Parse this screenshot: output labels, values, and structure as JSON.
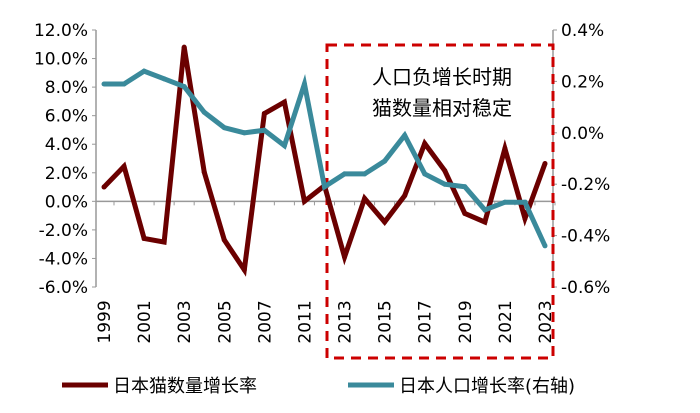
{
  "chart_data": {
    "type": "line",
    "categories": [
      "1999",
      "2000",
      "2001",
      "2002",
      "2003",
      "2004",
      "2005",
      "2006",
      "2007",
      "2009",
      "2011",
      "2012",
      "2013",
      "2014",
      "2015",
      "2016",
      "2017",
      "2018",
      "2019",
      "2020",
      "2021",
      "2022",
      "2023"
    ],
    "x_tick_labels": [
      "1999",
      "2001",
      "2003",
      "2005",
      "2007",
      "2011",
      "2013",
      "2015",
      "2017",
      "2019",
      "2021",
      "2023"
    ],
    "y_left": {
      "min": -6,
      "max": 12,
      "step": 2,
      "tick_labels": [
        "12.0%",
        "10.0%",
        "8.0%",
        "6.0%",
        "4.0%",
        "2.0%",
        "0.0%",
        "-2.0%",
        "-4.0%",
        "-6.0%"
      ]
    },
    "y_right": {
      "min": -0.6,
      "max": 0.4,
      "step": 0.2,
      "tick_labels": [
        "0.4%",
        "0.2%",
        "0.0%",
        "-0.2%",
        "-0.4%",
        "-0.6%"
      ]
    },
    "series": [
      {
        "name": "日本猫数量增长率",
        "axis": "left",
        "color": "#6b0000",
        "values": [
          1.0,
          2.45,
          -2.6,
          -2.85,
          10.8,
          2.05,
          -2.7,
          -4.8,
          6.15,
          6.95,
          0.0,
          1.1,
          -3.9,
          0.2,
          -1.45,
          0.4,
          4.05,
          2.15,
          -0.85,
          -1.45,
          3.7,
          -1.2,
          2.65
        ]
      },
      {
        "name": "日本人口增长率(右轴)",
        "axis": "right",
        "color": "#3a8a9b",
        "values": [
          0.19,
          0.19,
          0.24,
          0.21,
          0.18,
          0.08,
          0.02,
          0.0,
          0.01,
          -0.05,
          0.19,
          -0.21,
          -0.16,
          -0.16,
          -0.11,
          -0.01,
          -0.16,
          -0.2,
          -0.21,
          -0.3,
          -0.27,
          -0.27,
          -0.44
        ]
      }
    ],
    "annotation": {
      "lines": [
        "人口负增长时期",
        "猫数量相对稳定"
      ],
      "box_color": "#cc0000",
      "range": [
        "2013",
        "2023"
      ]
    },
    "legend_position": "bottom",
    "grid": false
  }
}
